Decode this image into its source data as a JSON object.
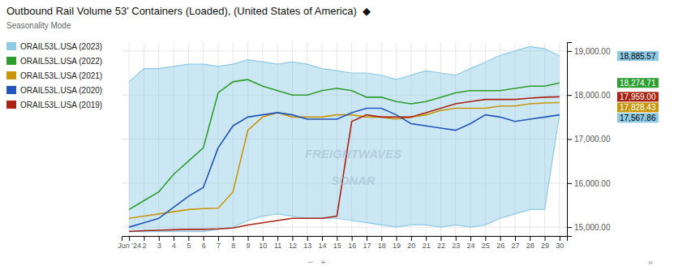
{
  "chart_data": {
    "type": "line",
    "title": "Outbound Rail Volume 53' Containers (Loaded), (United States of America)  ◆",
    "subtitle": "Seasonality Mode",
    "x": [
      1,
      2,
      3,
      4,
      5,
      6,
      7,
      8,
      9,
      10,
      11,
      12,
      13,
      14,
      15,
      16,
      17,
      18,
      19,
      20,
      21,
      22,
      23,
      24,
      25,
      26,
      27,
      28,
      29,
      30
    ],
    "xlim": [
      0.5,
      30.5
    ],
    "xticks": [
      {
        "value": 1,
        "label": "Jun '24"
      },
      2,
      3,
      4,
      5,
      6,
      7,
      8,
      9,
      10,
      11,
      12,
      13,
      14,
      15,
      16,
      17,
      18,
      19,
      20,
      21,
      22,
      23,
      24,
      25,
      26,
      27,
      28,
      29,
      30
    ],
    "ylim": [
      14800,
      19200
    ],
    "yticks": [
      {
        "value": 15000,
        "label": "15,000.00"
      },
      {
        "value": 16000,
        "label": "16,000.00"
      },
      {
        "value": 17000,
        "label": "17,000.00"
      },
      {
        "value": 18000,
        "label": "18,000.00"
      },
      {
        "value": 19000,
        "label": "19,000.00"
      }
    ],
    "grid": true,
    "legend": "left",
    "series": [
      {
        "name": "ORAIL53L.USA (2023)",
        "type": "area",
        "color": "#8ecae6",
        "upper": [
          18300,
          18600,
          18600,
          18650,
          18700,
          18700,
          18650,
          18700,
          18800,
          18750,
          18700,
          18750,
          18700,
          18600,
          18550,
          18500,
          18500,
          18450,
          18350,
          18450,
          18550,
          18500,
          18450,
          18600,
          18750,
          18900,
          19000,
          19100,
          19050,
          18886
        ],
        "lower": [
          14900,
          14900,
          14900,
          14900,
          14900,
          14900,
          14950,
          15000,
          15150,
          15250,
          15300,
          15250,
          15200,
          15200,
          15200,
          15150,
          15100,
          15050,
          15000,
          15050,
          15050,
          15000,
          15050,
          15000,
          15050,
          15200,
          15300,
          15400,
          15400,
          17568
        ]
      },
      {
        "name": "ORAIL53L.USA (2022)",
        "color": "#2d9e2d",
        "values": [
          15400,
          15600,
          15800,
          16200,
          16500,
          16800,
          18050,
          18300,
          18350,
          18200,
          18100,
          18000,
          18000,
          18100,
          18150,
          18100,
          17950,
          17950,
          17850,
          17800,
          17850,
          17950,
          18050,
          18100,
          18100,
          18100,
          18150,
          18200,
          18200,
          18275
        ]
      },
      {
        "name": "ORAIL53L.USA (2021)",
        "color": "#c8960c",
        "values": [
          15200,
          15250,
          15300,
          15350,
          15400,
          15420,
          15430,
          15800,
          17200,
          17500,
          17600,
          17500,
          17500,
          17500,
          17550,
          17550,
          17500,
          17500,
          17450,
          17500,
          17550,
          17650,
          17700,
          17700,
          17700,
          17750,
          17750,
          17800,
          17820,
          17828
        ]
      },
      {
        "name": "ORAIL53L.USA (2020)",
        "color": "#2255bb",
        "values": [
          15000,
          15100,
          15200,
          15450,
          15700,
          15900,
          16800,
          17300,
          17500,
          17550,
          17600,
          17550,
          17450,
          17450,
          17450,
          17600,
          17700,
          17700,
          17550,
          17350,
          17300,
          17250,
          17200,
          17350,
          17550,
          17500,
          17400,
          17450,
          17500,
          17550
        ]
      },
      {
        "name": "ORAIL53L.USA (2019)",
        "color": "#aa2211",
        "values": [
          14900,
          14920,
          14930,
          14940,
          14950,
          14950,
          14960,
          14980,
          15050,
          15100,
          15150,
          15200,
          15200,
          15200,
          15250,
          17400,
          17550,
          17500,
          17500,
          17500,
          17600,
          17700,
          17800,
          17850,
          17900,
          17900,
          17900,
          17930,
          17950,
          17959
        ]
      }
    ],
    "end_labels": [
      {
        "text": "18,885.57",
        "y": 18886,
        "color": "#8ecae6",
        "text_color": "#000000"
      },
      {
        "text": "18,274.71",
        "y": 18275,
        "color": "#2d9e2d",
        "text_color": "#ffffff"
      },
      {
        "text": "17,959.00",
        "y": 17959,
        "color": "#aa2211",
        "text_color": "#ffffff"
      },
      {
        "text": "17,828.43",
        "y": 17828,
        "color": "#c8960c",
        "text_color": "#ffffff"
      },
      {
        "text": "17,567.86",
        "y": 17568,
        "color": "#8ecae6",
        "text_color": "#000000"
      }
    ],
    "watermark": [
      "FREIGHTWAVES",
      "SONAR"
    ],
    "controls": [
      "−   +",
      "»"
    ]
  }
}
